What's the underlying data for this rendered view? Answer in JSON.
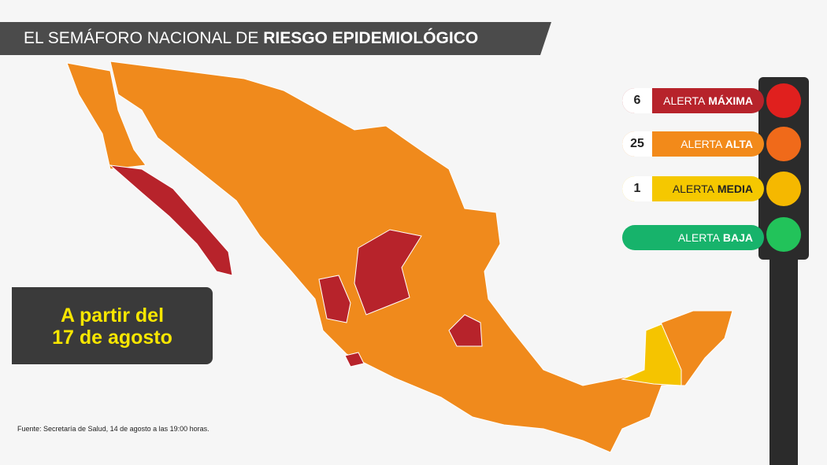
{
  "header": {
    "title_regular": "EL SEMÁFORO NACIONAL DE",
    "title_bold": "RIESGO EPIDEMIOLÓGICO"
  },
  "legend": [
    {
      "count": 6,
      "label": "ALERTA",
      "level": "MÁXIMA",
      "color": "#b7232b"
    },
    {
      "count": 25,
      "label": "ALERTA",
      "level": "ALTA",
      "color": "#f28a1a"
    },
    {
      "count": 1,
      "label": "ALERTA",
      "level": "MEDIA",
      "color": "#f5c800"
    },
    {
      "label": "ALERTA",
      "level": "BAJA",
      "color": "#17b36b"
    }
  ],
  "date_box": {
    "lines": [
      "A partir del",
      "17 de agosto"
    ]
  },
  "source": "Fuente: Secretaría de Salud, 14 de agosto a las 19:00 horas."
}
